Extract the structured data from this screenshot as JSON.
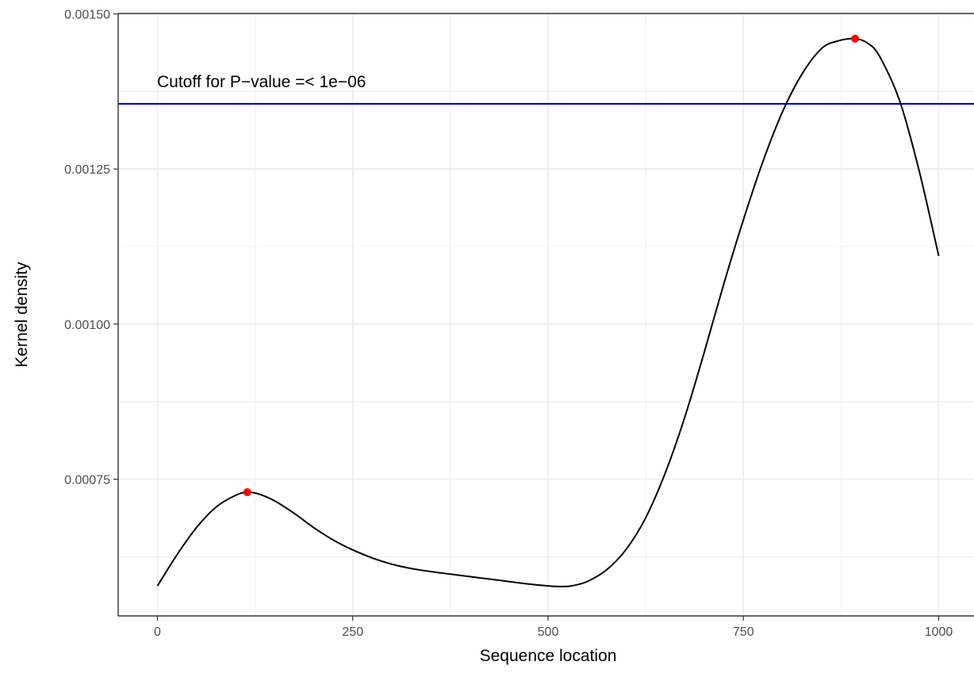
{
  "chart_data": {
    "type": "line",
    "title": "",
    "xlabel": "Sequence location",
    "ylabel": "Kernel density",
    "xlim": [
      -25,
      1025
    ],
    "ylim": [
      0.00054,
      0.0015
    ],
    "x_ticks": [
      0,
      250,
      500,
      750,
      1000
    ],
    "x_tick_labels": [
      "0",
      "250",
      "500",
      "750",
      "1000"
    ],
    "y_ticks": [
      0.00075,
      0.001,
      0.00125,
      0.0015
    ],
    "y_tick_labels": [
      "0.00075",
      "0.00100",
      "0.00125",
      "0.00150"
    ],
    "grid": true,
    "series": [
      {
        "color": "#000000",
        "x": [
          0,
          25,
          50,
          75,
          100,
          115,
          130,
          150,
          175,
          200,
          225,
          250,
          275,
          300,
          325,
          350,
          375,
          400,
          425,
          450,
          475,
          500,
          515,
          530,
          550,
          575,
          600,
          625,
          650,
          675,
          700,
          725,
          750,
          775,
          800,
          825,
          850,
          870,
          893,
          910,
          925,
          950,
          975,
          1000
        ],
        "y": [
          0.000578,
          0.000628,
          0.000672,
          0.000705,
          0.000724,
          0.000729,
          0.000726,
          0.000715,
          0.000695,
          0.000672,
          0.000652,
          0.000636,
          0.000623,
          0.000613,
          0.000606,
          0.000601,
          0.000597,
          0.000593,
          0.000589,
          0.000585,
          0.000581,
          0.000578,
          0.000577,
          0.000578,
          0.000585,
          0.000604,
          0.000637,
          0.000688,
          0.00076,
          0.00085,
          0.000955,
          0.001065,
          0.001168,
          0.001262,
          0.001342,
          0.001403,
          0.001444,
          0.001456,
          0.00146,
          0.001452,
          0.00143,
          0.00136,
          0.001247,
          0.00111
        ]
      }
    ],
    "peaks": {
      "color": "#ff0000",
      "x": [
        115,
        893
      ],
      "y": [
        0.000729,
        0.00146
      ]
    },
    "cutoff": {
      "color": "#0000cd",
      "y": 0.001355,
      "label": "Cutoff for P−value =< 1e−06"
    }
  }
}
